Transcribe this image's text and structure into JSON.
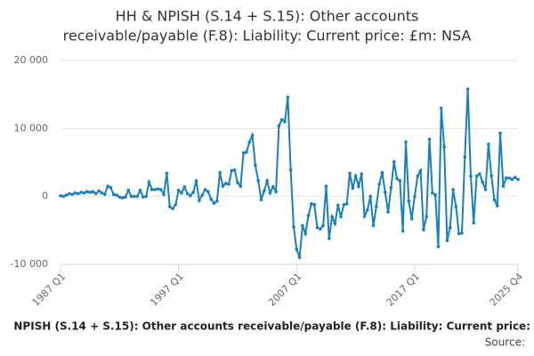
{
  "chart_data": {
    "type": "line",
    "title": [
      "HH & NPISH (S.14 + S.15): Other accounts",
      "receivable/payable (F.8): Liability: Current price: £m: NSA"
    ],
    "footer": "NPISH (S.14 + S.15): Other accounts receivable/payable (F.8): Liability: Current price:",
    "source": "Source:",
    "categories": [
      "1987 Q1",
      null,
      null,
      null,
      null,
      null,
      null,
      null,
      null,
      null,
      null,
      null,
      null,
      null,
      null,
      null,
      null,
      null,
      null,
      null,
      null,
      null,
      null,
      null,
      null,
      null,
      null,
      null,
      null,
      null,
      null,
      null,
      null,
      null,
      null,
      null,
      null,
      null,
      null,
      null,
      "1997 Q1",
      null,
      null,
      null,
      null,
      null,
      null,
      null,
      null,
      null,
      null,
      null,
      null,
      null,
      null,
      null,
      null,
      null,
      null,
      null,
      null,
      null,
      null,
      null,
      null,
      null,
      null,
      null,
      null,
      null,
      null,
      null,
      null,
      null,
      null,
      null,
      null,
      null,
      null,
      null,
      "2007 Q1",
      null,
      null,
      null,
      null,
      null,
      null,
      null,
      null,
      null,
      null,
      null,
      null,
      null,
      null,
      null,
      null,
      null,
      null,
      null,
      null,
      null,
      null,
      null,
      null,
      null,
      null,
      null,
      null,
      null,
      null,
      null,
      null,
      null,
      null,
      null,
      null,
      null,
      null,
      null,
      "2017 Q1",
      null,
      null,
      null,
      null,
      null,
      null,
      null,
      null,
      null,
      null,
      null,
      null,
      null,
      null,
      null,
      null,
      null,
      null,
      null,
      null,
      null,
      null,
      null,
      null,
      null,
      null,
      null,
      null,
      null,
      null,
      null,
      null,
      null,
      null,
      "2025 Q4"
    ],
    "values": [
      100,
      0,
      200,
      400,
      300,
      500,
      400,
      600,
      500,
      700,
      600,
      700,
      400,
      800,
      500,
      300,
      1500,
      1300,
      300,
      200,
      -100,
      -200,
      -100,
      900,
      0,
      0,
      0,
      900,
      -100,
      0,
      2100,
      1000,
      1000,
      1100,
      1000,
      300,
      3400,
      -1500,
      -1800,
      -1200,
      900,
      500,
      1400,
      400,
      100,
      600,
      2300,
      -600,
      200,
      1000,
      700,
      -400,
      -1000,
      -700,
      3500,
      1500,
      1900,
      1800,
      3800,
      3900,
      2000,
      1500,
      6400,
      6500,
      8000,
      9000,
      4600,
      2300,
      -500,
      800,
      2300,
      500,
      1400,
      700,
      10400,
      11300,
      11000,
      14600,
      3900,
      -4500,
      -7800,
      -9000,
      -4300,
      -5500,
      -2800,
      -1100,
      -1200,
      -4600,
      -4800,
      -4300,
      1500,
      -6200,
      -3000,
      -4000,
      -1300,
      -3000,
      -1200,
      -1100,
      3400,
      1200,
      3000,
      1500,
      3300,
      -2900,
      -2000,
      0,
      -4300,
      -1500,
      1800,
      3500,
      600,
      -2300,
      1300,
      5100,
      2600,
      2300,
      -5100,
      8000,
      -700,
      -3300,
      0,
      3000,
      3800,
      -4900,
      -3000,
      8400,
      500,
      200,
      -7400,
      13000,
      7300,
      -6500,
      -4600,
      1000,
      -1500,
      -5500,
      -5400,
      5800,
      15800,
      3000,
      -3900,
      3000,
      3300,
      2100,
      1000,
      7700,
      3000,
      -500,
      -1400,
      9300,
      1500,
      2700,
      2700,
      2500,
      2800,
      2500
    ],
    "color": "#1a80bb",
    "ylim": [
      -10000,
      20000
    ],
    "yticks": [
      {
        "value": -10000,
        "label": "-10 000"
      },
      0,
      {
        "value": 10000,
        "label": "10 000"
      },
      {
        "value": 20000,
        "label": "20 000"
      }
    ],
    "grid": true
  }
}
